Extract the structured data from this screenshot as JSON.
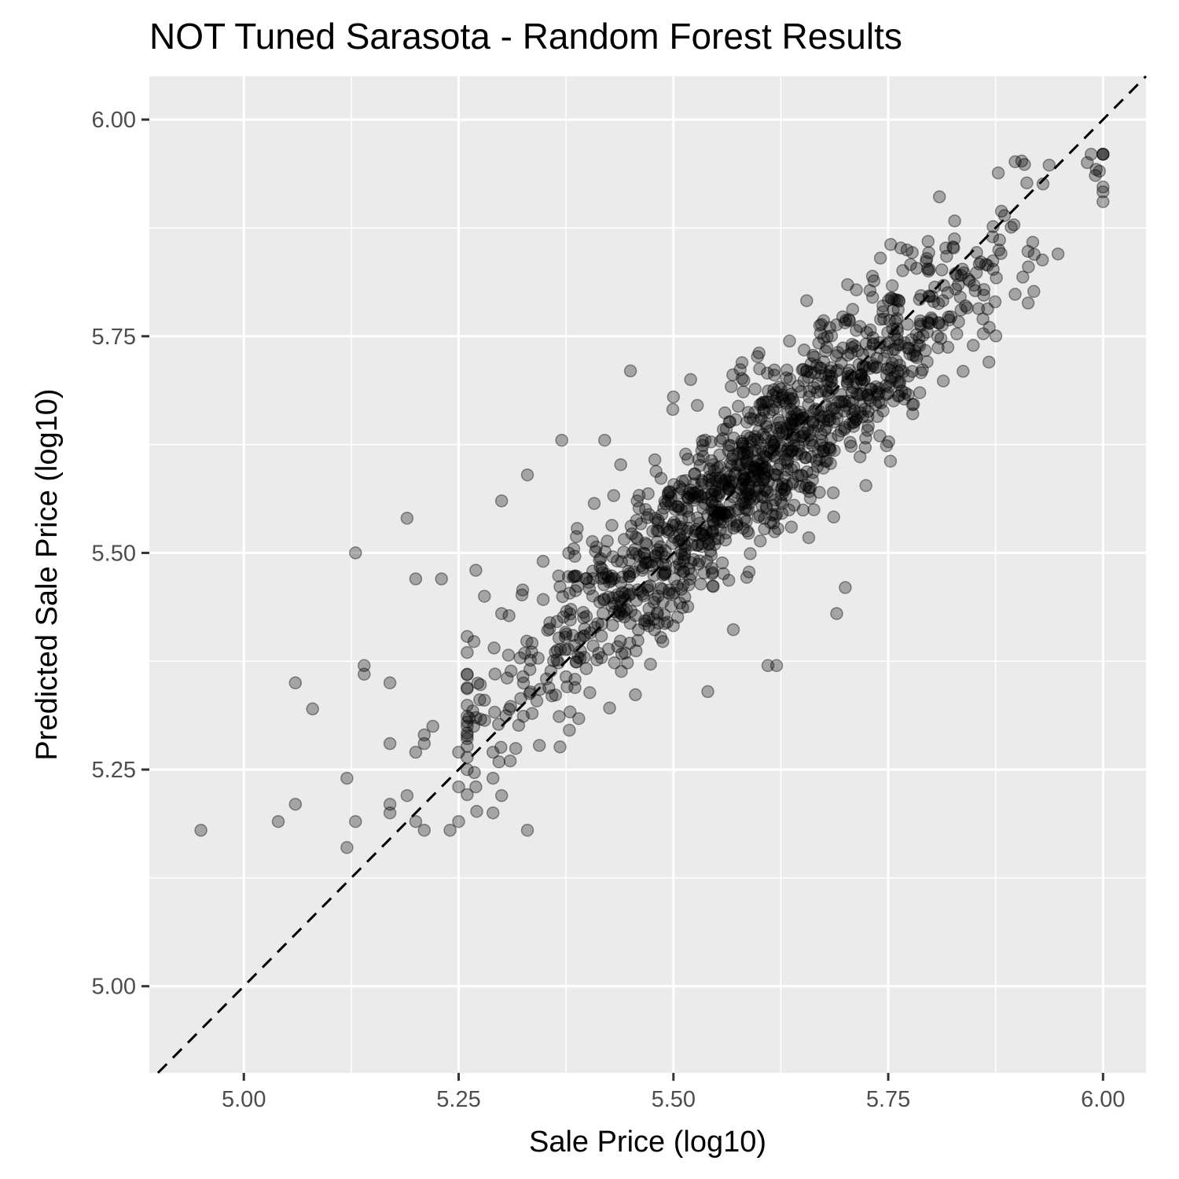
{
  "chart_data": {
    "type": "scatter",
    "title": "NOT Tuned Sarasota - Random Forest Results",
    "xlabel": "Sale Price (log10)",
    "ylabel": "Predicted Sale Price (log10)",
    "xlim": [
      4.89,
      6.05
    ],
    "ylim": [
      4.9,
      6.05
    ],
    "x_ticks": [
      5.0,
      5.25,
      5.5,
      5.75,
      6.0
    ],
    "y_ticks": [
      5.0,
      5.25,
      5.5,
      5.75,
      6.0
    ],
    "x_tick_labels": [
      "5.00",
      "5.25",
      "5.50",
      "5.75",
      "6.00"
    ],
    "y_tick_labels": [
      "5.00",
      "5.25",
      "5.50",
      "5.75",
      "6.00"
    ],
    "grid": true,
    "reference_line": {
      "slope": 1,
      "intercept": 0,
      "style": "dashed",
      "color": "#000000"
    },
    "point_color": "#000000",
    "point_opacity": 0.3,
    "panel_background": "#ebebeb",
    "grid_color": "#ffffff",
    "outliers": [
      [
        4.95,
        5.18
      ],
      [
        5.04,
        5.19
      ],
      [
        5.06,
        5.21
      ],
      [
        5.06,
        5.35
      ],
      [
        5.08,
        5.32
      ],
      [
        5.12,
        5.16
      ],
      [
        5.12,
        5.24
      ],
      [
        5.13,
        5.19
      ],
      [
        5.13,
        5.5
      ],
      [
        5.14,
        5.37
      ],
      [
        5.14,
        5.36
      ],
      [
        5.17,
        5.28
      ],
      [
        5.17,
        5.35
      ],
      [
        5.17,
        5.21
      ],
      [
        5.17,
        5.2
      ],
      [
        5.19,
        5.22
      ],
      [
        5.19,
        5.54
      ],
      [
        5.2,
        5.19
      ],
      [
        5.2,
        5.47
      ],
      [
        5.2,
        5.27
      ],
      [
        5.21,
        5.28
      ],
      [
        5.21,
        5.29
      ],
      [
        5.21,
        5.18
      ],
      [
        5.22,
        5.3
      ],
      [
        5.23,
        5.47
      ],
      [
        5.24,
        5.18
      ],
      [
        5.25,
        5.19
      ],
      [
        5.25,
        5.27
      ],
      [
        5.25,
        5.23
      ],
      [
        5.26,
        5.25
      ],
      [
        5.26,
        5.36
      ],
      [
        5.27,
        5.23
      ],
      [
        5.27,
        5.31
      ],
      [
        5.27,
        5.48
      ],
      [
        5.28,
        5.45
      ],
      [
        5.28,
        5.33
      ],
      [
        5.29,
        5.2
      ],
      [
        5.29,
        5.27
      ],
      [
        5.29,
        5.24
      ],
      [
        5.3,
        5.22
      ],
      [
        5.3,
        5.43
      ],
      [
        5.3,
        5.56
      ],
      [
        5.31,
        5.26
      ],
      [
        5.33,
        5.18
      ],
      [
        5.33,
        5.59
      ],
      [
        5.37,
        5.63
      ],
      [
        5.42,
        5.63
      ],
      [
        5.45,
        5.71
      ],
      [
        5.5,
        5.68
      ],
      [
        5.52,
        5.7
      ],
      [
        5.54,
        5.34
      ],
      [
        5.61,
        5.37
      ],
      [
        5.62,
        5.37
      ],
      [
        5.69,
        5.43
      ],
      [
        5.7,
        5.46
      ]
    ],
    "cloud": {
      "n": 1300,
      "seed": 20240611,
      "x_center": 5.6,
      "x_sd": 0.15,
      "x_min": 5.26,
      "x_max": 6.0,
      "fit_slope": 0.87,
      "fit_intercept": 0.73,
      "residual_sd": 0.05
    }
  }
}
